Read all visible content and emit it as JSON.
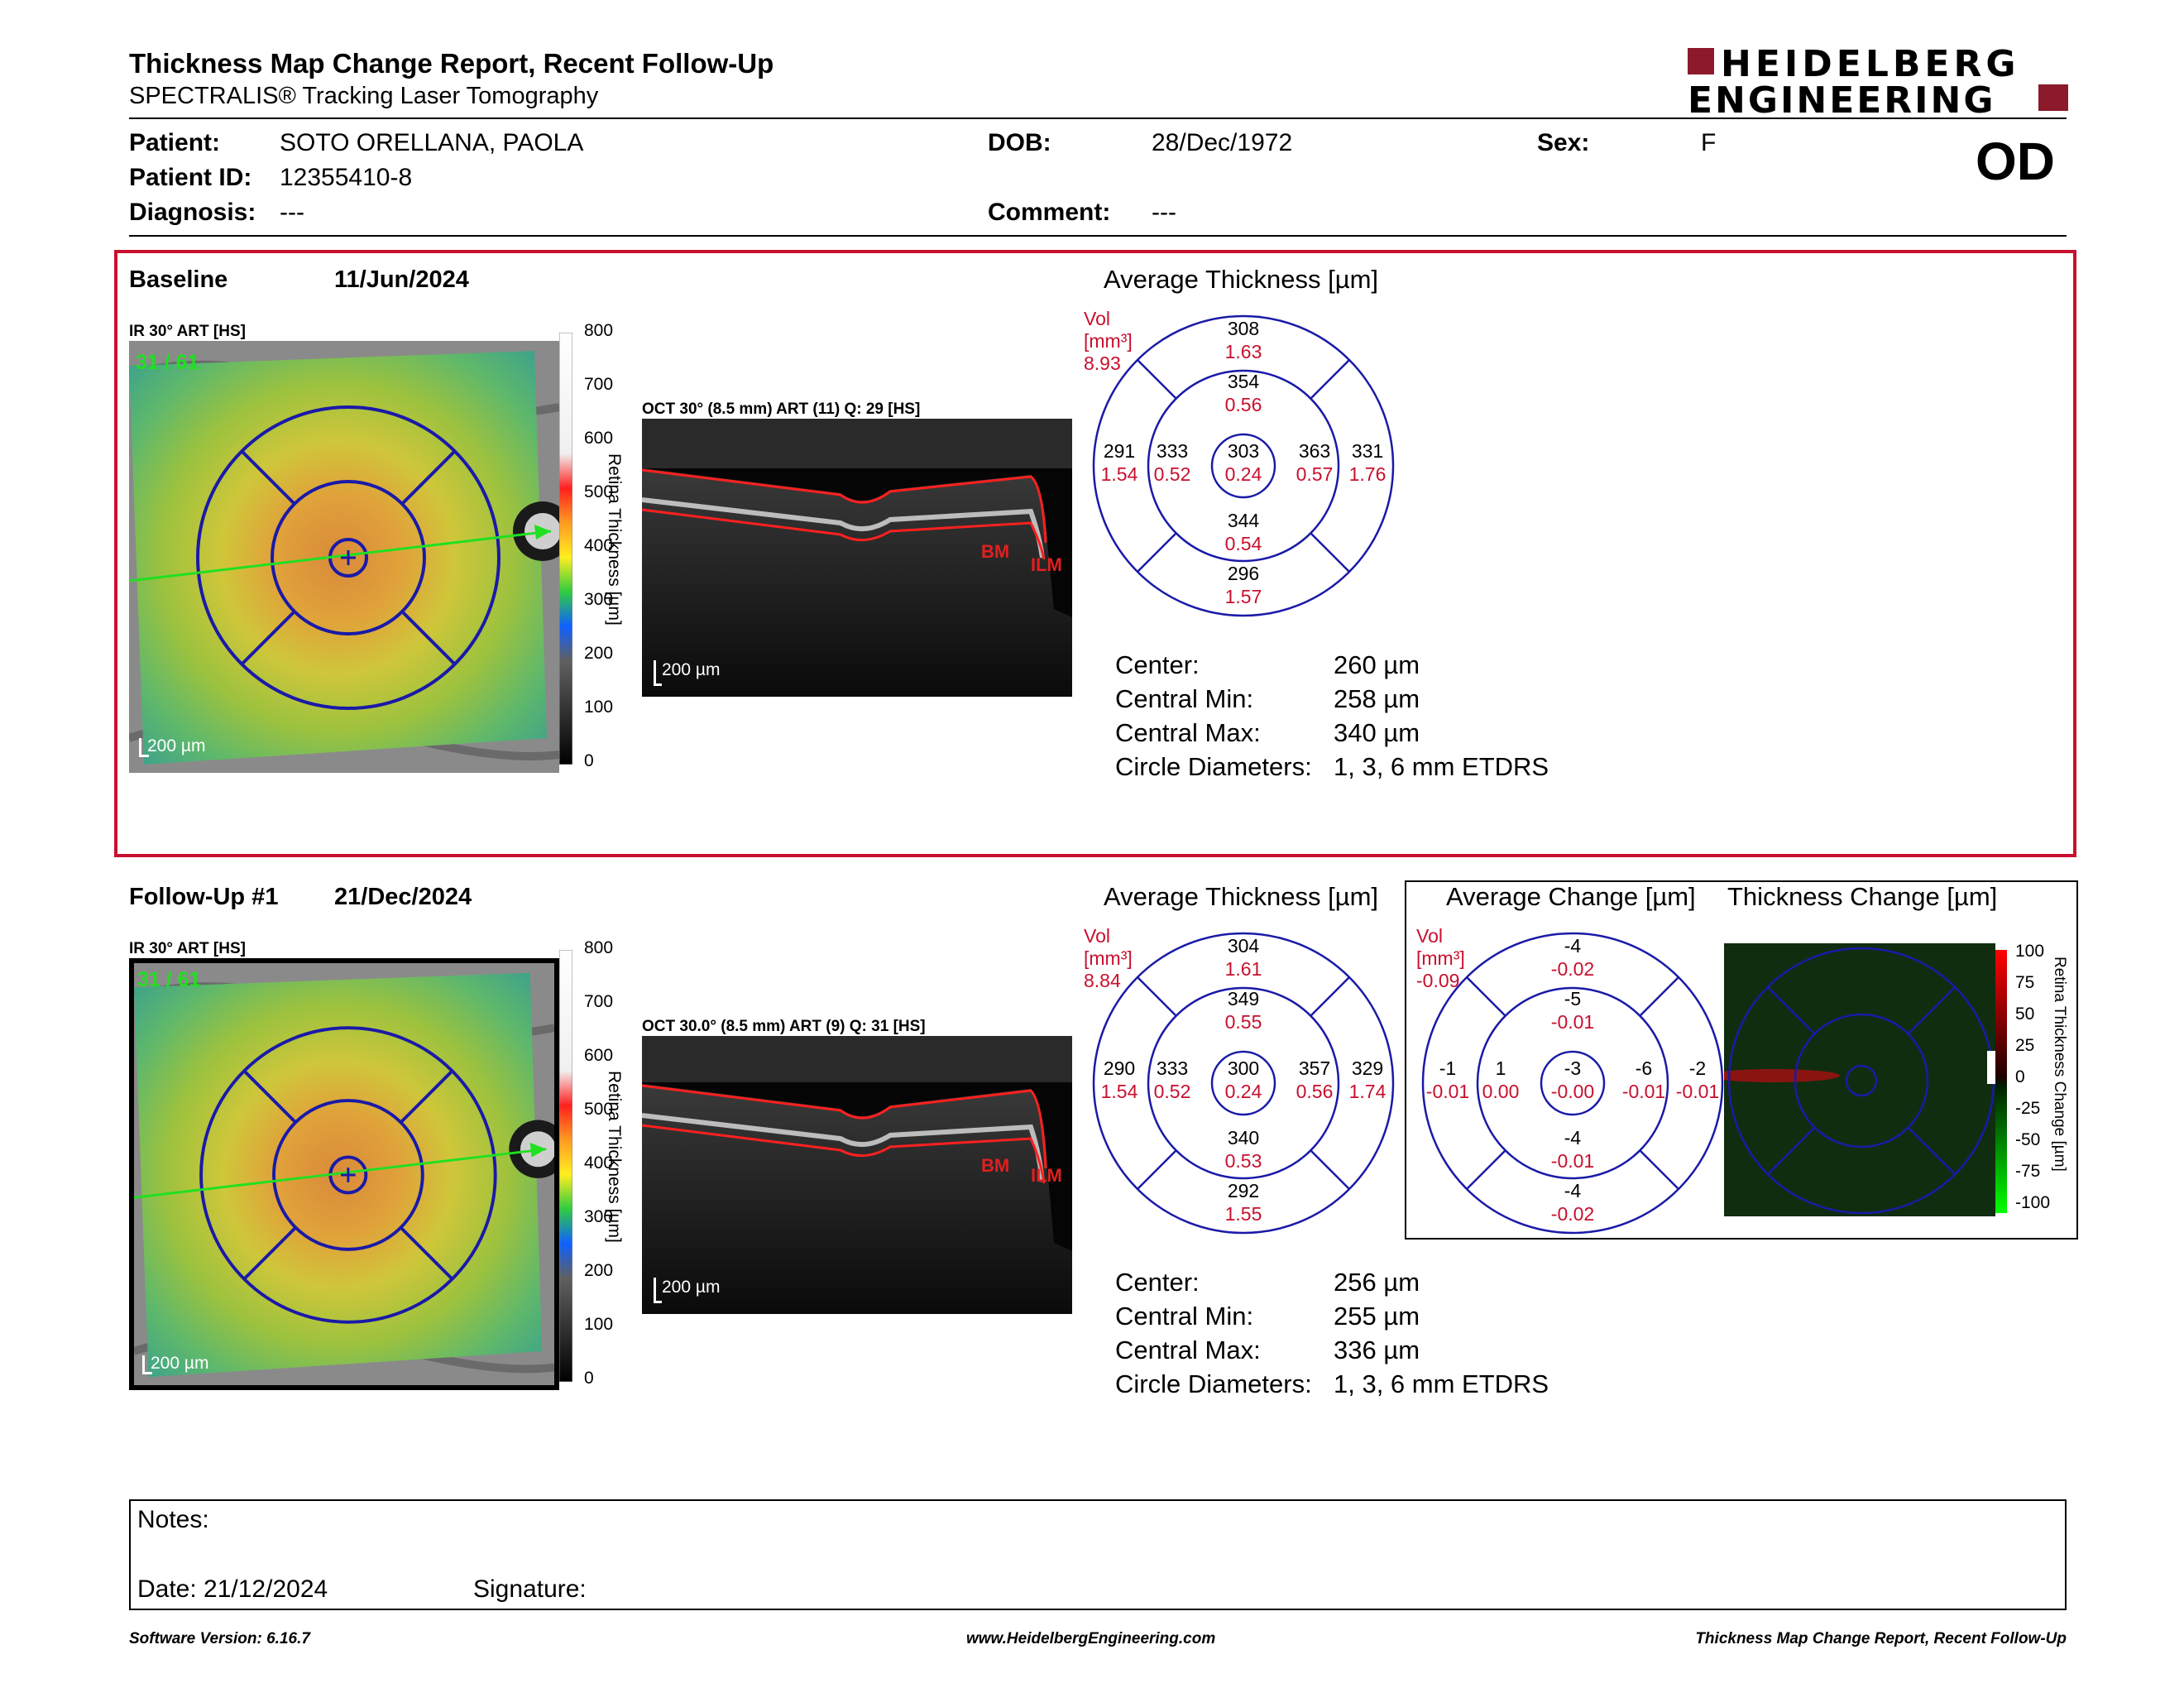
{
  "header": {
    "title": "Thickness Map Change Report, Recent Follow-Up",
    "subtitle": "SPECTRALIS® Tracking Laser Tomography",
    "logo_line1": "HEIDELBERG",
    "logo_line2": "ENGINEERING",
    "eye": "OD"
  },
  "patient": {
    "patient_label": "Patient:",
    "patient_value": "SOTO ORELLANA, PAOLA",
    "id_label": "Patient ID:",
    "id_value": "12355410-8",
    "diagnosis_label": "Diagnosis:",
    "diagnosis_value": "---",
    "dob_label": "DOB:",
    "dob_value": "28/Dec/1972",
    "comment_label": "Comment:",
    "comment_value": "---",
    "sex_label": "Sex:",
    "sex_value": "F"
  },
  "baseline": {
    "label": "Baseline",
    "date": "11/Jun/2024",
    "ir_label": "IR 30° ART [HS]",
    "frame": "31 / 61",
    "scale": "200 µm",
    "oct_label": "OCT 30° (8.5 mm) ART (11) Q: 29 [HS]",
    "oct_scale": "200 µm",
    "avg_title": "Average Thickness [µm]",
    "vol_label": "Vol [mm³]",
    "vol_value": "8.93",
    "etdrs": {
      "outer_top": [
        "308",
        "1.63"
      ],
      "inner_top": [
        "354",
        "0.56"
      ],
      "outer_left": [
        "291",
        "1.54"
      ],
      "inner_left": [
        "333",
        "0.52"
      ],
      "center": [
        "303",
        "0.24"
      ],
      "inner_right": [
        "363",
        "0.57"
      ],
      "outer_right": [
        "331",
        "1.76"
      ],
      "inner_bottom": [
        "344",
        "0.54"
      ],
      "outer_bottom": [
        "296",
        "1.57"
      ]
    },
    "stats": {
      "center_label": "Center:",
      "center_value": "260 µm",
      "min_label": "Central Min:",
      "min_value": "258 µm",
      "max_label": "Central Max:",
      "max_value": "340 µm",
      "diam_label": "Circle Diameters:",
      "diam_value": "1, 3, 6 mm ETDRS"
    }
  },
  "followup": {
    "label": "Follow-Up #1",
    "date": "21/Dec/2024",
    "ir_label": "IR 30° ART [HS]",
    "frame": "31 / 61",
    "scale": "200 µm",
    "oct_label": "OCT 30.0° (8.5 mm) ART (9) Q: 31 [HS]",
    "oct_scale": "200 µm",
    "avg_title": "Average Thickness [µm]",
    "vol_label": "Vol [mm³]",
    "vol_value": "8.84",
    "etdrs": {
      "outer_top": [
        "304",
        "1.61"
      ],
      "inner_top": [
        "349",
        "0.55"
      ],
      "outer_left": [
        "290",
        "1.54"
      ],
      "inner_left": [
        "333",
        "0.52"
      ],
      "center": [
        "300",
        "0.24"
      ],
      "inner_right": [
        "357",
        "0.56"
      ],
      "outer_right": [
        "329",
        "1.74"
      ],
      "inner_bottom": [
        "340",
        "0.53"
      ],
      "outer_bottom": [
        "292",
        "1.55"
      ]
    },
    "stats": {
      "center_label": "Center:",
      "center_value": "256 µm",
      "min_label": "Central Min:",
      "min_value": "255 µm",
      "max_label": "Central Max:",
      "max_value": "336 µm",
      "diam_label": "Circle Diameters:",
      "diam_value": "1, 3, 6 mm ETDRS"
    }
  },
  "change": {
    "avg_title": "Average Change [µm]",
    "map_title": "Thickness Change [µm]",
    "vol_label": "Vol [mm³]",
    "vol_value": "-0.09",
    "etdrs": {
      "outer_top": [
        "-4",
        "-0.02"
      ],
      "inner_top": [
        "-5",
        "-0.01"
      ],
      "outer_left": [
        "-1",
        "-0.01"
      ],
      "inner_left": [
        "1",
        "0.00"
      ],
      "center": [
        "-3",
        "-0.00"
      ],
      "inner_right": [
        "-6",
        "-0.01"
      ],
      "outer_right": [
        "-2",
        "-0.01"
      ],
      "inner_bottom": [
        "-4",
        "-0.01"
      ],
      "outer_bottom": [
        "-4",
        "-0.02"
      ]
    },
    "scale_ticks": [
      "100",
      "75",
      "50",
      "25",
      "0",
      "-25",
      "-50",
      "-75",
      "-100"
    ],
    "scale_title": "Retina Thickness Change [µm]"
  },
  "thickness_scale": {
    "ticks": [
      "800",
      "700",
      "600",
      "500",
      "400",
      "300",
      "200",
      "100",
      "0"
    ],
    "title": "Retina Thickness [µm]"
  },
  "oct_layers": {
    "bm": "BM",
    "ilm": "ILM"
  },
  "notes": {
    "notes_label": "Notes:",
    "date_label": "Date: 21/12/2024",
    "signature_label": "Signature:"
  },
  "footer": {
    "version": "Software Version: 6.16.7",
    "website": "www.HeidelbergEngineering.com",
    "report": "Thickness Map Change Report, Recent Follow-Up"
  },
  "colors": {
    "accent_red": "#c8102e",
    "etdrs_blue": "#1a1aa8",
    "logo_maroon": "#8b1a2b",
    "baseline_frame": "#c8102e"
  }
}
